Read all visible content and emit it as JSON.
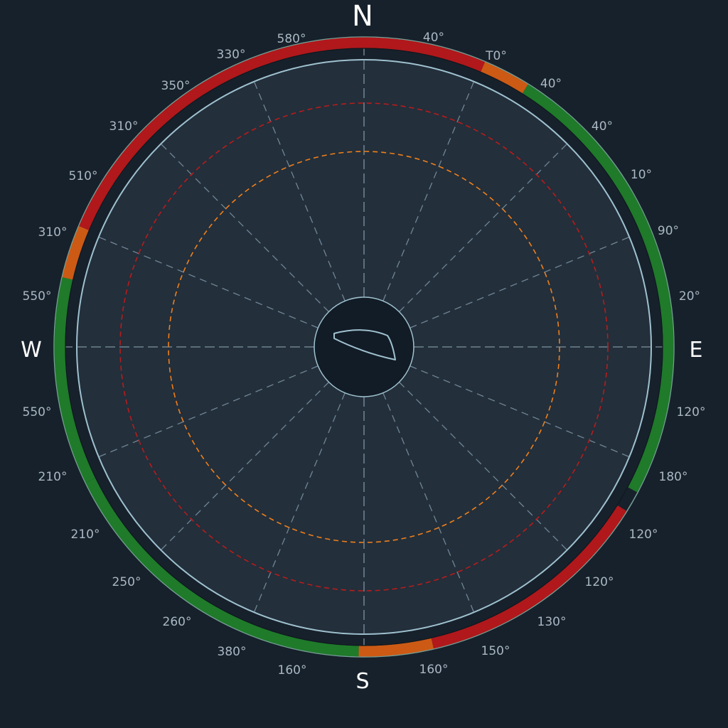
{
  "cardinals": {
    "north": "N",
    "east": "E",
    "south": "S",
    "west": "W"
  },
  "bearing_labels": [
    "580°",
    "40°",
    "T0°",
    "40°",
    "40°",
    "10°",
    "90°",
    "20°",
    "120°",
    "180°",
    "120°",
    "120°",
    "130°",
    "150°",
    "160°",
    "160°",
    "380°",
    "260°",
    "250°",
    "210°",
    "210°",
    "550°",
    "550°",
    "310°",
    "510°",
    "310°",
    "350°",
    "330°"
  ],
  "sector_zones": [
    {
      "status": "danger",
      "from_deg": -40,
      "to_deg": 23
    },
    {
      "status": "caution",
      "from_deg": 23,
      "to_deg": 32
    },
    {
      "status": "safe",
      "from_deg": 32,
      "to_deg": 118
    },
    {
      "status": "danger",
      "from_deg": 122,
      "to_deg": 167
    },
    {
      "status": "caution",
      "from_deg": 167,
      "to_deg": 181
    },
    {
      "status": "safe",
      "from_deg": 181,
      "to_deg": 244
    },
    {
      "status": "safe",
      "from_deg": 244,
      "to_deg": 283
    },
    {
      "status": "caution",
      "from_deg": 283,
      "to_deg": 293
    },
    {
      "status": "danger",
      "from_deg": 293,
      "to_deg": 320
    }
  ],
  "range_rings": [
    {
      "name": "outer-danger-ring",
      "color": "#b71c1c"
    },
    {
      "name": "inner-caution-ring",
      "color": "#ef7f1a"
    }
  ],
  "colors": {
    "background": "#17212b",
    "plot_fill": "#232f3b",
    "hub_fill": "#121c26",
    "ring_stroke": "#9fc1cf",
    "danger": "#b0181b",
    "caution": "#cc5a14",
    "safe": "#1f7a2a",
    "safe_edge": "#6fcf7a",
    "boat_outline": "#9fc1cf"
  },
  "icons": {
    "vessel": "boat-hull-icon"
  }
}
